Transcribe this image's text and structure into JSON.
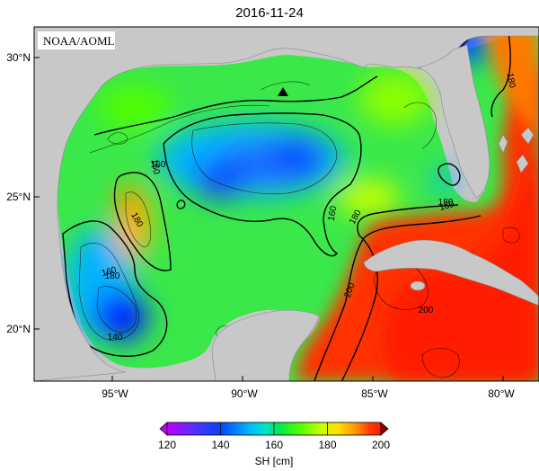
{
  "title": "2016-11-24",
  "credit": "NOAA/AOML",
  "colors": {
    "land": "#c8c8c8",
    "frame": "#000000",
    "scale": [
      "#c000ff",
      "#5a2dff",
      "#0046ff",
      "#00b4ff",
      "#00e6c8",
      "#00e650",
      "#50ff00",
      "#c8ff00",
      "#ffe000",
      "#ff9600",
      "#ff3c00",
      "#ff1e00"
    ]
  },
  "map": {
    "lon_range": [
      -98.5,
      -78.0
    ],
    "lat_range": [
      18.0,
      31.0
    ],
    "lat_ticks": [
      "20°N",
      "25°N",
      "30°N"
    ],
    "lon_ticks": [
      "95°W",
      "90°W",
      "85°W",
      "80°W"
    ],
    "marker": {
      "type": "triangle",
      "lon": -88.4,
      "lat": 28.5
    }
  },
  "contours": {
    "labels": [
      "180",
      "160",
      "180",
      "160",
      "160",
      "140",
      "160",
      "160",
      "180",
      "180",
      "200",
      "200",
      "180",
      "160"
    ]
  },
  "colorbar": {
    "min": 120,
    "max": 200,
    "tick_labels": [
      "120",
      "140",
      "160",
      "180",
      "200"
    ],
    "label": "SH [cm]"
  }
}
